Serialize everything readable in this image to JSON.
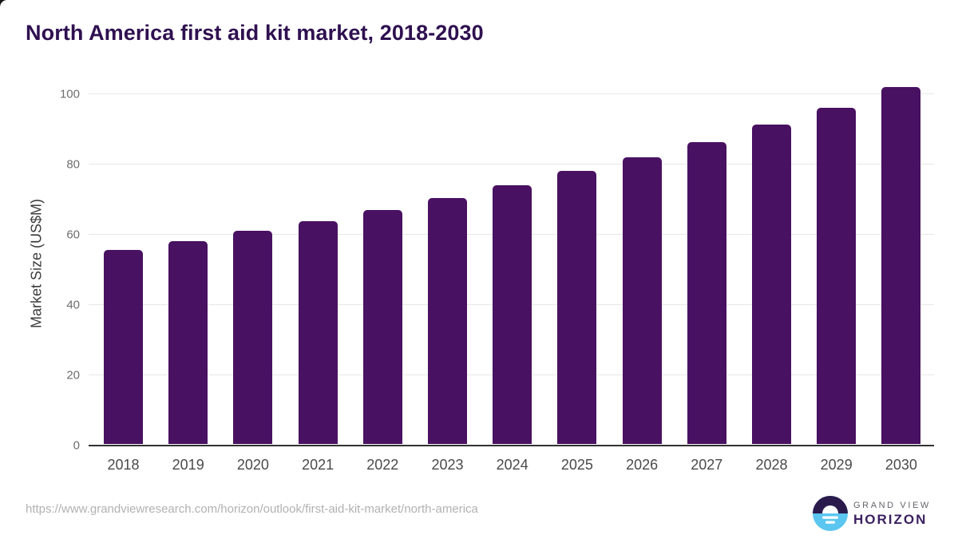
{
  "chart_data": {
    "type": "bar",
    "title": "North America first aid kit market, 2018-2030",
    "xlabel": "",
    "ylabel": "Market Size (US$M)",
    "categories": [
      "2018",
      "2019",
      "2020",
      "2021",
      "2022",
      "2023",
      "2024",
      "2025",
      "2026",
      "2027",
      "2028",
      "2029",
      "2030"
    ],
    "values": [
      55.4,
      57.9,
      60.8,
      63.6,
      66.8,
      70.2,
      73.8,
      77.8,
      81.8,
      86.1,
      91.0,
      95.9,
      101.8
    ],
    "ylim": [
      0,
      106
    ],
    "yticks": [
      0,
      20,
      40,
      60,
      80,
      100
    ],
    "grid": true,
    "legend": "none",
    "bar_color": "#491161"
  },
  "footer": {
    "url": "https://www.grandviewresearch.com/horizon/outlook/first-aid-kit-market/north-america",
    "logo": {
      "line1": "GRAND VIEW",
      "line2": "HORIZON",
      "icon": "horizon-sunset-circle-icon",
      "icon_top_color": "#2b1b4d",
      "icon_bottom_color": "#5bc6f0"
    }
  },
  "colors": {
    "title": "#2f1050",
    "bar": "#491161",
    "gridline": "#e8e8e8",
    "axis_line": "#323232",
    "tick_text": "#6e6e6e",
    "x_label_text": "#4a4a4a",
    "url_text": "#b3b1b1"
  }
}
